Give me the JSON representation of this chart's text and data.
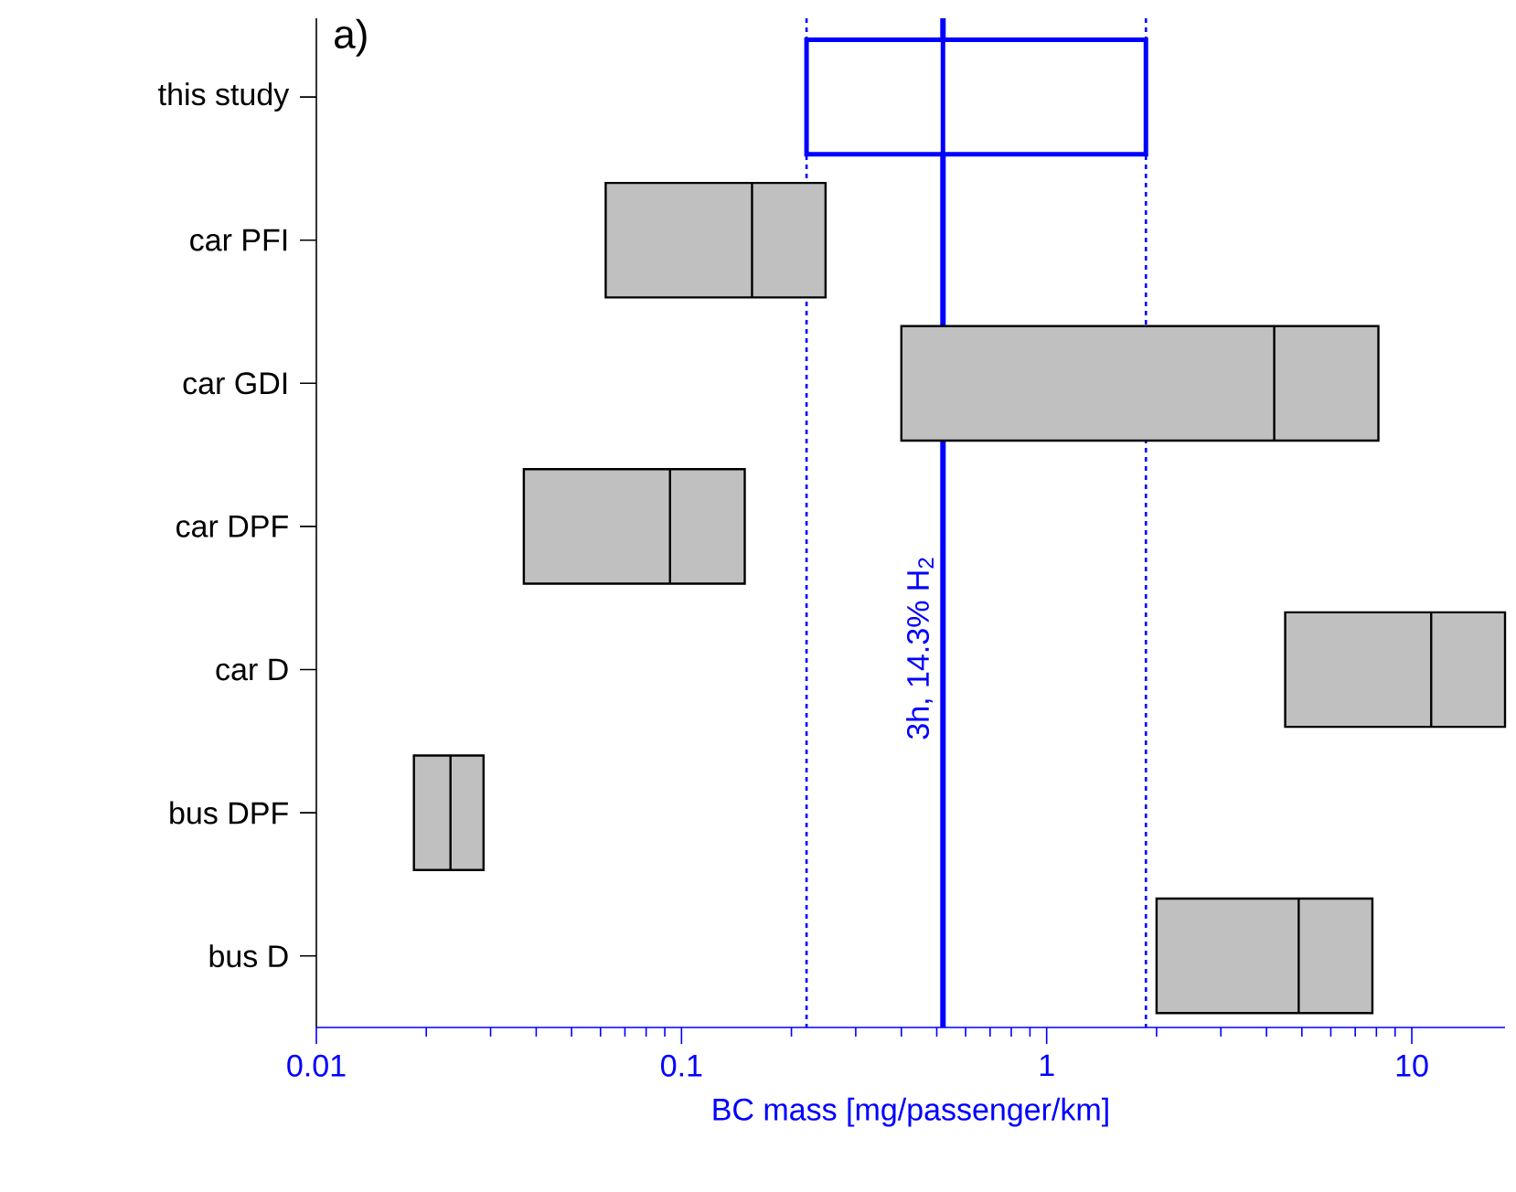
{
  "chart_data": {
    "type": "box",
    "orientation": "horizontal",
    "log": "x",
    "xlabel": "BC mass [mg/passenger/km]",
    "categories": [
      "this study",
      "car PFI",
      "car GDI",
      "car DPF",
      "car D",
      "bus  DPF",
      "bus D"
    ],
    "xlim": [
      0.01,
      18
    ],
    "xticks": [
      0.01,
      0.1,
      1,
      10
    ],
    "series": [
      {
        "color": "#0000ff",
        "boxes": [
          {
            "low": 0.22,
            "q1": 0.22,
            "median": 0.52,
            "q3": 1.87,
            "high": 1.87
          },
          null,
          null,
          null,
          null,
          null,
          null
        ]
      },
      {
        "color": "#c0c0c0",
        "boxes": [
          null,
          {
            "low": 0.062,
            "q1": 0.062,
            "median": 0.156,
            "q3": 0.248,
            "high": 0.248
          },
          {
            "low": 0.4,
            "q1": 0.4,
            "median": 4.2,
            "q3": 8.1,
            "high": 8.1
          },
          {
            "low": 0.037,
            "q1": 0.037,
            "median": 0.093,
            "q3": 0.149,
            "high": 0.149
          },
          {
            "low": 4.5,
            "q1": 4.5,
            "median": 11.3,
            "q3": 18,
            "high": 18
          },
          {
            "low": 0.0185,
            "q1": 0.0185,
            "median": 0.0233,
            "q3": 0.0287,
            "high": 0.0287
          },
          {
            "low": 2.0,
            "q1": 2.0,
            "median": 4.9,
            "q3": 7.8,
            "high": 7.8
          }
        ]
      }
    ],
    "ref_lines": [
      {
        "axis": "x",
        "value": 0.52,
        "label": "3h, 14.3% H$_{2}$",
        "color": "#0000ff",
        "line_style": "solid"
      },
      {
        "axis": "x",
        "value": 0.22,
        "color": "#0000ff",
        "line_style": "dotted"
      },
      {
        "axis": "x",
        "value": 1.87,
        "color": "#0000ff",
        "line_style": "dotted"
      }
    ],
    "annotations": [
      "a)"
    ]
  }
}
